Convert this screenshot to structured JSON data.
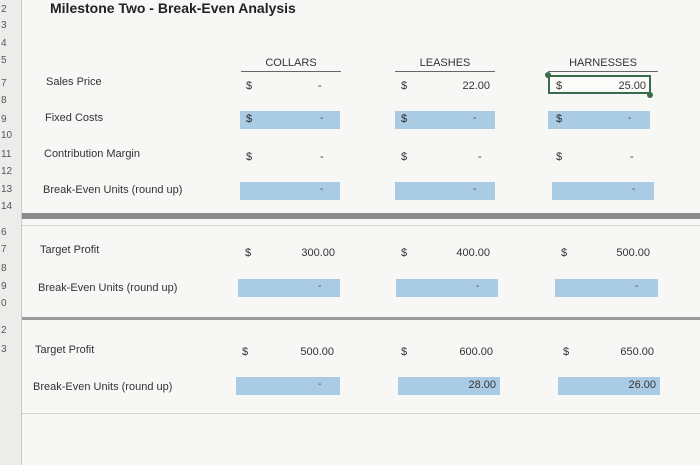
{
  "title": "Milestone Two - Break-Even Analysis",
  "row_numbers": [
    "2",
    "3",
    "4",
    "5",
    "7",
    "8",
    "9",
    "10",
    "11",
    "12",
    "13",
    "14",
    "6",
    "7",
    "8",
    "9",
    "0",
    "2",
    "3"
  ],
  "columns": [
    "COLLARS",
    "LEASHES",
    "HARNESSES"
  ],
  "currency": "$",
  "dash": "-",
  "section1": {
    "sales_price_label": "Sales Price",
    "fixed_costs_label": "Fixed Costs",
    "contribution_margin_label": "Contribution Margin",
    "break_even_label": "Break-Even Units (round up)",
    "sales_price": {
      "collars": "-",
      "leashes": "22.00",
      "harnesses": "25.00"
    }
  },
  "section2": {
    "target_profit_label": "Target Profit",
    "break_even_label": "Break-Even Units (round up)",
    "target_profit": {
      "collars": "300.00",
      "leashes": "400.00",
      "harnesses": "500.00"
    }
  },
  "section3": {
    "target_profit_label": "Target Profit",
    "break_even_label": "Break-Even Units (round up)",
    "target_profit": {
      "collars": "500.00",
      "leashes": "600.00",
      "harnesses": "650.00"
    },
    "break_even": {
      "leashes": "28.00",
      "harnesses": "26.00"
    }
  },
  "colors": {
    "input_cell": "#a9cbe3",
    "separator": "#8a8a8a"
  }
}
